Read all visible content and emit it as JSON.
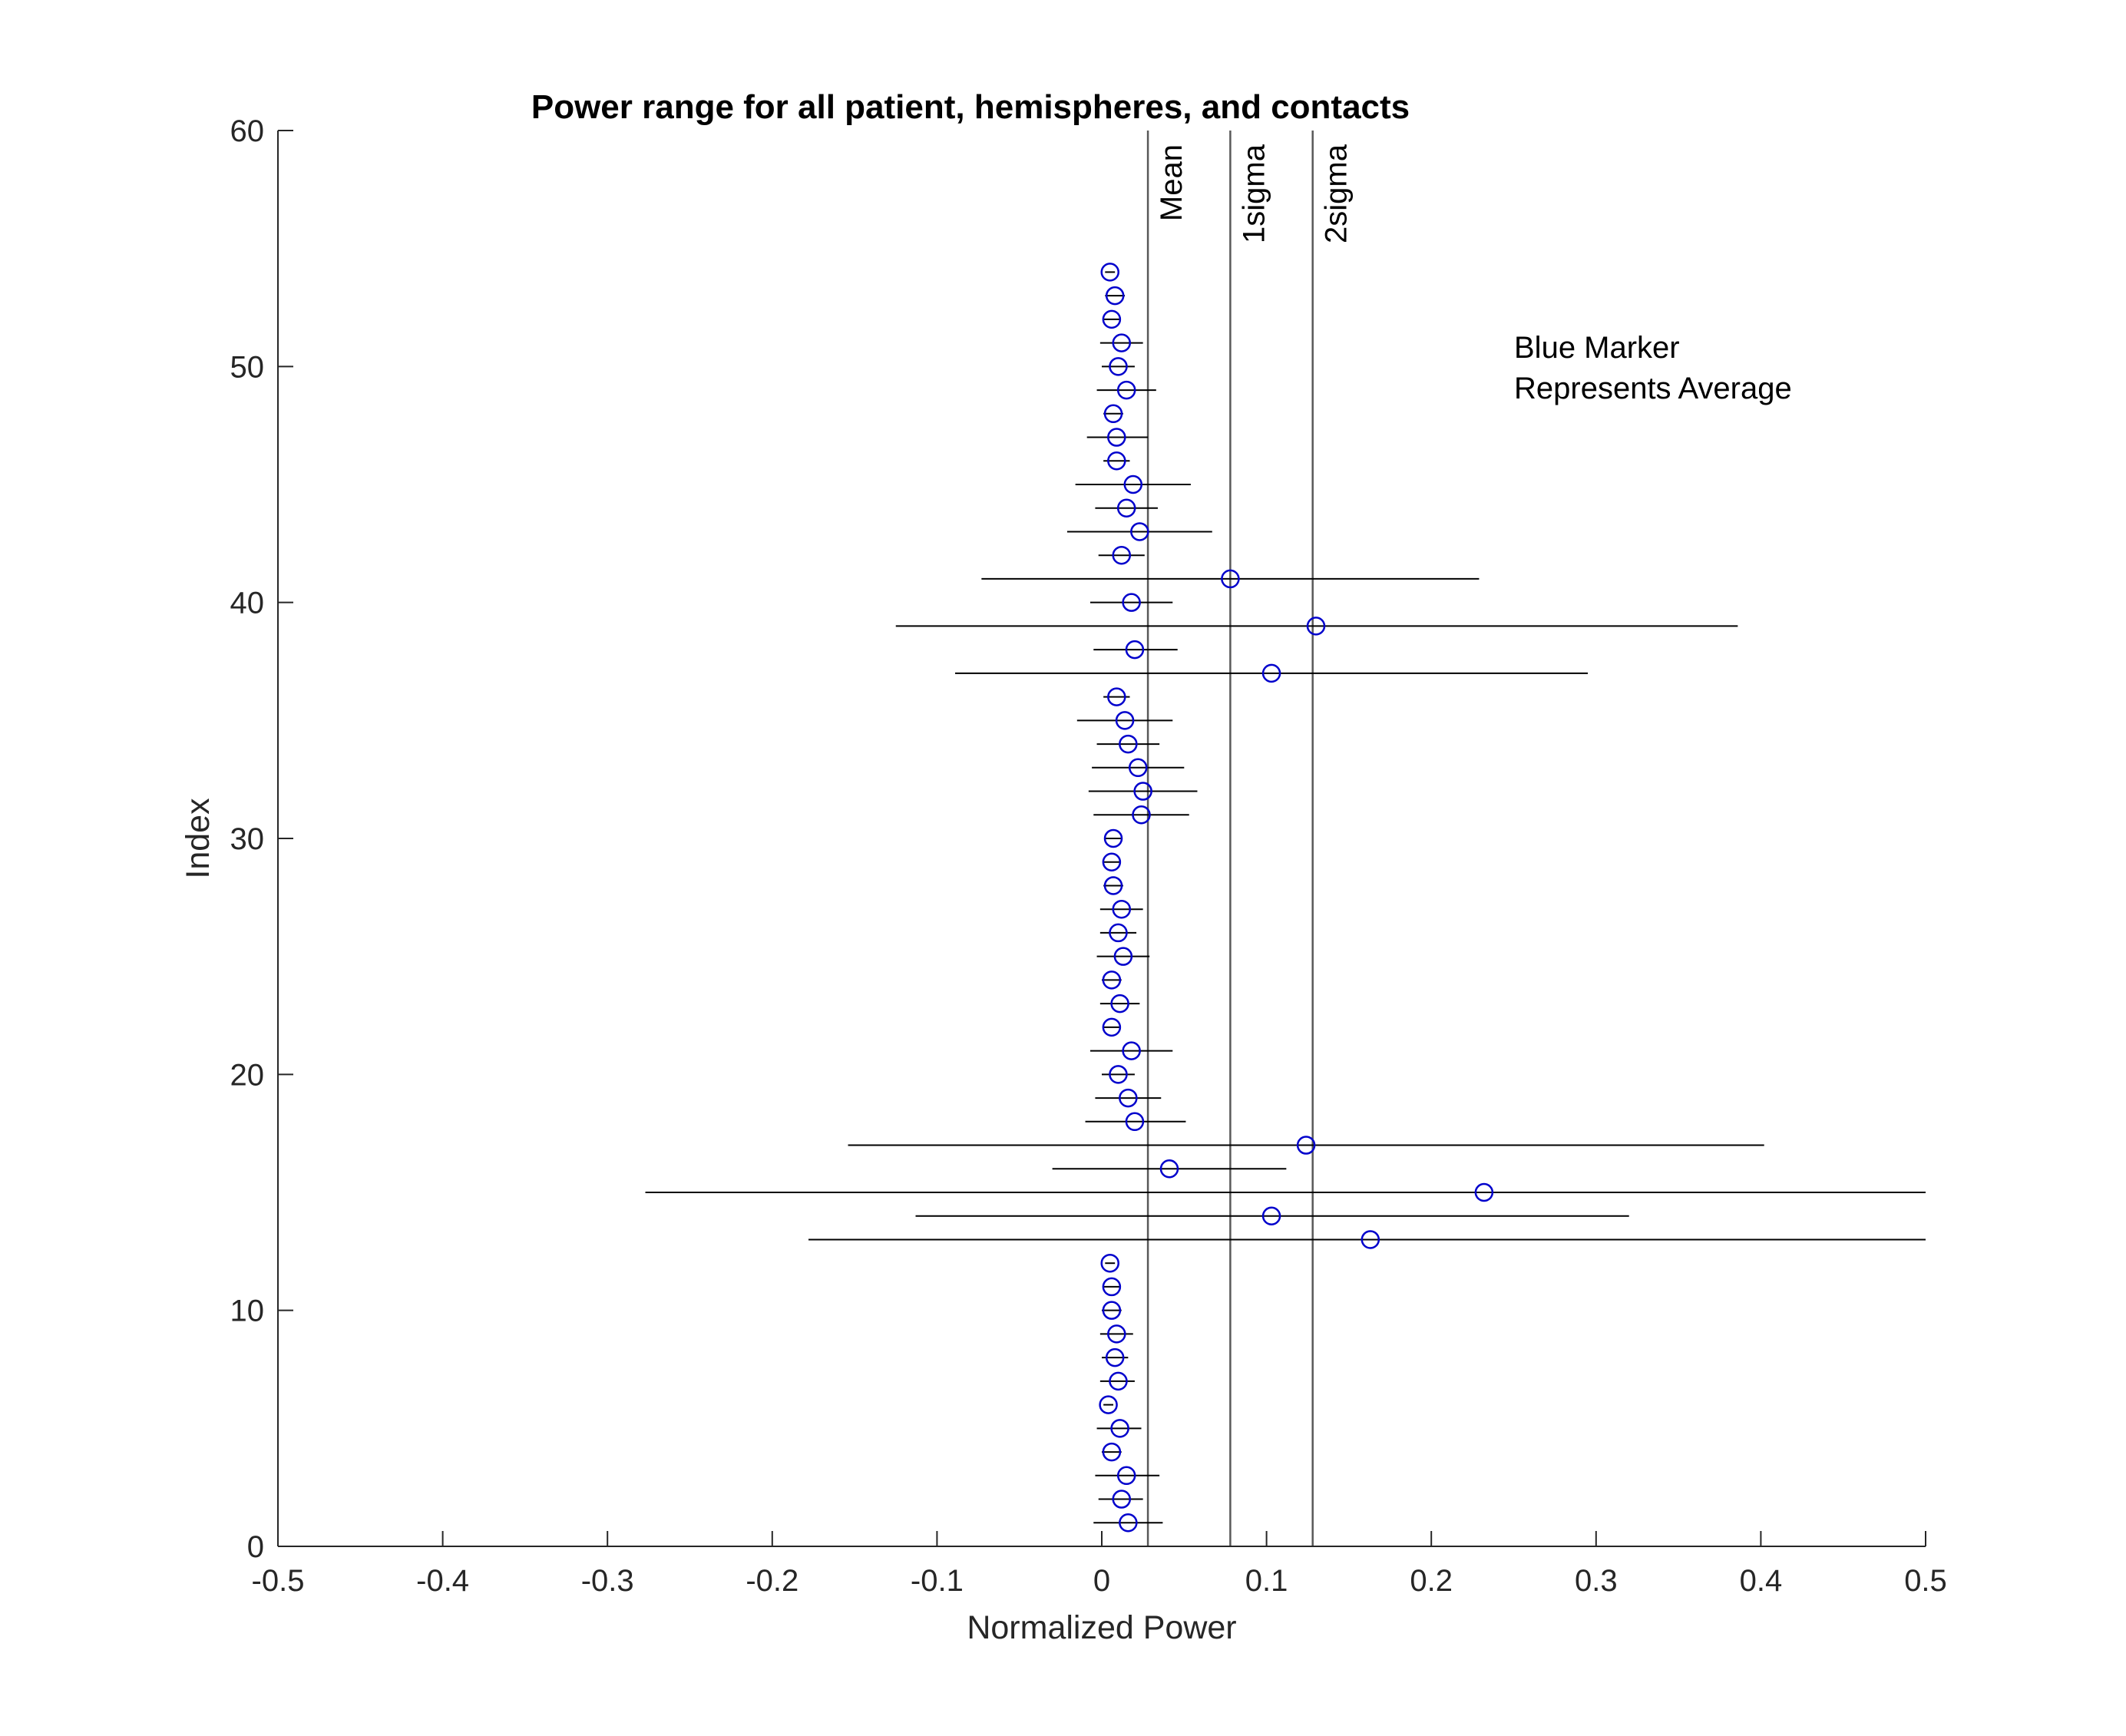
{
  "chart_data": {
    "type": "scatter",
    "title": "Power range for all patient, hemispheres, and contacts",
    "xlabel": "Normalized Power",
    "ylabel": "Index",
    "xlim": [
      -0.5,
      0.5
    ],
    "ylim": [
      0,
      60
    ],
    "xticks": [
      -0.5,
      -0.4,
      -0.3,
      -0.2,
      -0.1,
      0,
      0.1,
      0.2,
      0.3,
      0.4,
      0.5
    ],
    "xtick_labels": [
      "-0.5",
      "-0.4",
      "-0.3",
      "-0.2",
      "-0.1",
      "0",
      "0.1",
      "0.2",
      "0.3",
      "0.4",
      "0.5"
    ],
    "yticks": [
      0,
      10,
      20,
      30,
      40,
      50,
      60
    ],
    "ytick_labels": [
      "0",
      "10",
      "20",
      "30",
      "40",
      "50",
      "60"
    ],
    "grid": false,
    "marker_color": "#0000cc",
    "line_color": "#000000",
    "vlines": [
      {
        "label": "Mean",
        "x": 0.028
      },
      {
        "label": "1sigma",
        "x": 0.078
      },
      {
        "label": "2sigma",
        "x": 0.128
      }
    ],
    "annotation": [
      "Blue Marker",
      "Represents Average"
    ],
    "points": [
      {
        "index": 1,
        "mean": 0.016,
        "low": -0.005,
        "high": 0.037
      },
      {
        "index": 2,
        "mean": 0.012,
        "low": -0.002,
        "high": 0.025
      },
      {
        "index": 3,
        "mean": 0.015,
        "low": -0.004,
        "high": 0.035
      },
      {
        "index": 4,
        "mean": 0.006,
        "low": 0.0,
        "high": 0.012
      },
      {
        "index": 5,
        "mean": 0.011,
        "low": -0.003,
        "high": 0.024
      },
      {
        "index": 6,
        "mean": 0.004,
        "low": 0.001,
        "high": 0.007
      },
      {
        "index": 7,
        "mean": 0.01,
        "low": -0.001,
        "high": 0.02
      },
      {
        "index": 8,
        "mean": 0.008,
        "low": 0.0,
        "high": 0.016
      },
      {
        "index": 9,
        "mean": 0.009,
        "low": -0.001,
        "high": 0.019
      },
      {
        "index": 10,
        "mean": 0.006,
        "low": 0.0,
        "high": 0.012
      },
      {
        "index": 11,
        "mean": 0.006,
        "low": 0.001,
        "high": 0.011
      },
      {
        "index": 12,
        "mean": 0.005,
        "low": 0.002,
        "high": 0.008
      },
      {
        "index": 13,
        "mean": 0.163,
        "low": -0.178,
        "high": 0.5
      },
      {
        "index": 14,
        "mean": 0.103,
        "low": -0.113,
        "high": 0.32
      },
      {
        "index": 15,
        "mean": 0.232,
        "low": -0.277,
        "high": 0.5
      },
      {
        "index": 16,
        "mean": 0.041,
        "low": -0.03,
        "high": 0.112
      },
      {
        "index": 17,
        "mean": 0.124,
        "low": -0.154,
        "high": 0.402
      },
      {
        "index": 18,
        "mean": 0.02,
        "low": -0.01,
        "high": 0.051
      },
      {
        "index": 19,
        "mean": 0.016,
        "low": -0.004,
        "high": 0.036
      },
      {
        "index": 20,
        "mean": 0.01,
        "low": 0.0,
        "high": 0.02
      },
      {
        "index": 21,
        "mean": 0.018,
        "low": -0.007,
        "high": 0.043
      },
      {
        "index": 22,
        "mean": 0.006,
        "low": 0.001,
        "high": 0.011
      },
      {
        "index": 23,
        "mean": 0.011,
        "low": -0.001,
        "high": 0.023
      },
      {
        "index": 24,
        "mean": 0.006,
        "low": 0.0,
        "high": 0.012
      },
      {
        "index": 25,
        "mean": 0.013,
        "low": -0.003,
        "high": 0.029
      },
      {
        "index": 26,
        "mean": 0.01,
        "low": -0.001,
        "high": 0.021
      },
      {
        "index": 27,
        "mean": 0.012,
        "low": -0.001,
        "high": 0.025
      },
      {
        "index": 28,
        "mean": 0.007,
        "low": 0.001,
        "high": 0.013
      },
      {
        "index": 29,
        "mean": 0.006,
        "low": 0.001,
        "high": 0.011
      },
      {
        "index": 30,
        "mean": 0.007,
        "low": 0.002,
        "high": 0.012
      },
      {
        "index": 31,
        "mean": 0.024,
        "low": -0.005,
        "high": 0.053
      },
      {
        "index": 32,
        "mean": 0.025,
        "low": -0.008,
        "high": 0.058
      },
      {
        "index": 33,
        "mean": 0.022,
        "low": -0.006,
        "high": 0.05
      },
      {
        "index": 34,
        "mean": 0.016,
        "low": -0.003,
        "high": 0.035
      },
      {
        "index": 35,
        "mean": 0.014,
        "low": -0.015,
        "high": 0.043
      },
      {
        "index": 36,
        "mean": 0.009,
        "low": 0.001,
        "high": 0.017
      },
      {
        "index": 37,
        "mean": 0.103,
        "low": -0.089,
        "high": 0.295
      },
      {
        "index": 38,
        "mean": 0.02,
        "low": -0.005,
        "high": 0.046
      },
      {
        "index": 39,
        "mean": 0.13,
        "low": -0.125,
        "high": 0.386
      },
      {
        "index": 40,
        "mean": 0.018,
        "low": -0.007,
        "high": 0.043
      },
      {
        "index": 41,
        "mean": 0.078,
        "low": -0.073,
        "high": 0.229
      },
      {
        "index": 42,
        "mean": 0.012,
        "low": -0.002,
        "high": 0.026
      },
      {
        "index": 43,
        "mean": 0.023,
        "low": -0.021,
        "high": 0.067
      },
      {
        "index": 44,
        "mean": 0.015,
        "low": -0.004,
        "high": 0.034
      },
      {
        "index": 45,
        "mean": 0.019,
        "low": -0.016,
        "high": 0.054
      },
      {
        "index": 46,
        "mean": 0.009,
        "low": 0.001,
        "high": 0.017
      },
      {
        "index": 47,
        "mean": 0.009,
        "low": -0.009,
        "high": 0.028
      },
      {
        "index": 48,
        "mean": 0.007,
        "low": 0.001,
        "high": 0.013
      },
      {
        "index": 49,
        "mean": 0.015,
        "low": -0.003,
        "high": 0.033
      },
      {
        "index": 50,
        "mean": 0.01,
        "low": 0.0,
        "high": 0.02
      },
      {
        "index": 51,
        "mean": 0.012,
        "low": -0.001,
        "high": 0.025
      },
      {
        "index": 52,
        "mean": 0.006,
        "low": 0.001,
        "high": 0.011
      },
      {
        "index": 53,
        "mean": 0.008,
        "low": 0.002,
        "high": 0.014
      },
      {
        "index": 54,
        "mean": 0.005,
        "low": 0.002,
        "high": 0.008
      }
    ]
  }
}
